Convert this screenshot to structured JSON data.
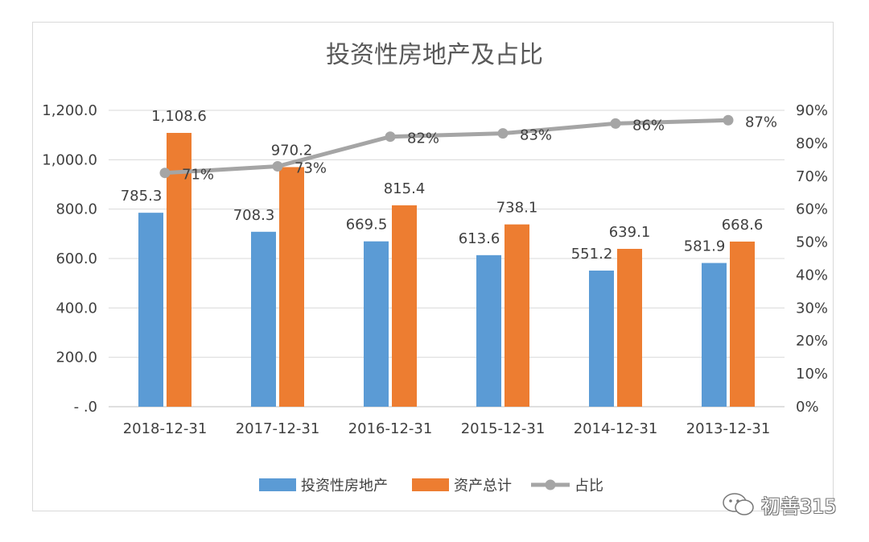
{
  "chart_data": {
    "type": "bar",
    "title": "投资性房地产及占比",
    "categories": [
      "2018-12-31",
      "2017-12-31",
      "2016-12-31",
      "2015-12-31",
      "2014-12-31",
      "2013-12-31"
    ],
    "series": [
      {
        "name": "投资性房地产",
        "type": "bar",
        "axis": "left",
        "color": "#5B9BD5",
        "values": [
          785.3,
          708.3,
          669.5,
          613.6,
          551.2,
          581.9
        ],
        "labels": [
          "785.3",
          "708.3",
          "669.5",
          "613.6",
          "551.2",
          "581.9"
        ]
      },
      {
        "name": "资产总计",
        "type": "bar",
        "axis": "left",
        "color": "#ED7D31",
        "values": [
          1108.6,
          970.2,
          815.4,
          738.1,
          639.1,
          668.6
        ],
        "labels": [
          "1,108.6",
          "970.2",
          "815.4",
          "738.1",
          "639.1",
          "668.6"
        ]
      },
      {
        "name": "占比",
        "type": "line",
        "axis": "right",
        "color": "#A5A5A5",
        "values": [
          0.71,
          0.73,
          0.82,
          0.83,
          0.86,
          0.87
        ],
        "labels": [
          "71%",
          "73%",
          "82%",
          "83%",
          "86%",
          "87%"
        ]
      }
    ],
    "y_left": {
      "ylim": [
        0,
        1200
      ],
      "ticks": [
        0,
        200,
        400,
        600,
        800,
        1000,
        1200
      ],
      "tick_labels": [
        "- .0",
        "200.0",
        "400.0",
        "600.0",
        "800.0",
        "1,000.0",
        "1,200.0"
      ]
    },
    "y_right": {
      "ylim": [
        0,
        0.9
      ],
      "ticks": [
        0,
        0.1,
        0.2,
        0.3,
        0.4,
        0.5,
        0.6,
        0.7,
        0.8,
        0.9
      ],
      "tick_labels": [
        "0%",
        "10%",
        "20%",
        "30%",
        "40%",
        "50%",
        "60%",
        "70%",
        "80%",
        "90%"
      ]
    },
    "grid": true,
    "legend_position": "bottom"
  },
  "watermark": {
    "text": "初善315"
  }
}
